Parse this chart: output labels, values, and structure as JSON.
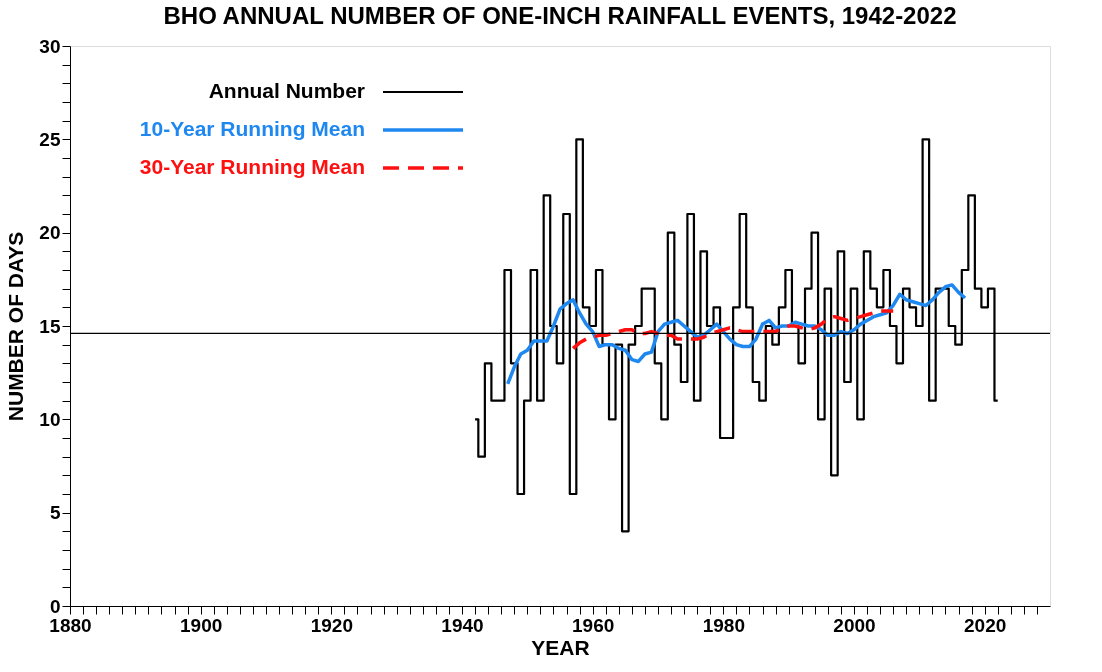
{
  "chart_data": {
    "type": "line",
    "title": "BHO ANNUAL NUMBER OF ONE-INCH RAINFALL EVENTS,   1942-2022",
    "xlabel": "YEAR",
    "ylabel": "NUMBER OF DAYS",
    "xlim": [
      1880,
      2030
    ],
    "ylim": [
      0,
      30
    ],
    "xticks": [
      1880,
      {
        "value": 1882,
        "label": null
      },
      {
        "value": 1884,
        "label": null
      },
      {
        "value": 1886,
        "label": null
      },
      {
        "value": 1888,
        "label": null
      },
      {
        "value": 1890,
        "label": null
      },
      {
        "value": 1892,
        "label": null
      },
      {
        "value": 1894,
        "label": null
      },
      {
        "value": 1896,
        "label": null
      },
      {
        "value": 1898,
        "label": null
      },
      1900,
      {
        "value": 1902,
        "label": null
      },
      {
        "value": 1904,
        "label": null
      },
      {
        "value": 1906,
        "label": null
      },
      {
        "value": 1908,
        "label": null
      },
      {
        "value": 1910,
        "label": null
      },
      {
        "value": 1912,
        "label": null
      },
      {
        "value": 1914,
        "label": null
      },
      {
        "value": 1916,
        "label": null
      },
      {
        "value": 1918,
        "label": null
      },
      1920,
      {
        "value": 1922,
        "label": null
      },
      {
        "value": 1924,
        "label": null
      },
      {
        "value": 1926,
        "label": null
      },
      {
        "value": 1928,
        "label": null
      },
      {
        "value": 1930,
        "label": null
      },
      {
        "value": 1932,
        "label": null
      },
      {
        "value": 1934,
        "label": null
      },
      {
        "value": 1936,
        "label": null
      },
      {
        "value": 1938,
        "label": null
      },
      1940,
      {
        "value": 1942,
        "label": null
      },
      {
        "value": 1944,
        "label": null
      },
      {
        "value": 1946,
        "label": null
      },
      {
        "value": 1948,
        "label": null
      },
      {
        "value": 1950,
        "label": null
      },
      {
        "value": 1952,
        "label": null
      },
      {
        "value": 1954,
        "label": null
      },
      {
        "value": 1956,
        "label": null
      },
      {
        "value": 1958,
        "label": null
      },
      1960,
      {
        "value": 1962,
        "label": null
      },
      {
        "value": 1964,
        "label": null
      },
      {
        "value": 1966,
        "label": null
      },
      {
        "value": 1968,
        "label": null
      },
      {
        "value": 1970,
        "label": null
      },
      {
        "value": 1972,
        "label": null
      },
      {
        "value": 1974,
        "label": null
      },
      {
        "value": 1976,
        "label": null
      },
      {
        "value": 1978,
        "label": null
      },
      1980,
      {
        "value": 1982,
        "label": null
      },
      {
        "value": 1984,
        "label": null
      },
      {
        "value": 1986,
        "label": null
      },
      {
        "value": 1988,
        "label": null
      },
      {
        "value": 1990,
        "label": null
      },
      {
        "value": 1992,
        "label": null
      },
      {
        "value": 1994,
        "label": null
      },
      {
        "value": 1996,
        "label": null
      },
      {
        "value": 1998,
        "label": null
      },
      2000,
      {
        "value": 2002,
        "label": null
      },
      {
        "value": 2004,
        "label": null
      },
      {
        "value": 2006,
        "label": null
      },
      {
        "value": 2008,
        "label": null
      },
      {
        "value": 2010,
        "label": null
      },
      {
        "value": 2012,
        "label": null
      },
      {
        "value": 2014,
        "label": null
      },
      {
        "value": 2016,
        "label": null
      },
      {
        "value": 2018,
        "label": null
      },
      2020,
      {
        "value": 2022,
        "label": null
      },
      {
        "value": 2024,
        "label": null
      },
      {
        "value": 2026,
        "label": null
      },
      {
        "value": 2028,
        "label": null
      }
    ],
    "yticks": [
      0,
      {
        "value": 1,
        "label": null
      },
      {
        "value": 2,
        "label": null
      },
      {
        "value": 3,
        "label": null
      },
      {
        "value": 4,
        "label": null
      },
      5,
      {
        "value": 6,
        "label": null
      },
      {
        "value": 7,
        "label": null
      },
      {
        "value": 8,
        "label": null
      },
      {
        "value": 9,
        "label": null
      },
      10,
      {
        "value": 11,
        "label": null
      },
      {
        "value": 12,
        "label": null
      },
      {
        "value": 13,
        "label": null
      },
      {
        "value": 14,
        "label": null
      },
      15,
      {
        "value": 16,
        "label": null
      },
      {
        "value": 17,
        "label": null
      },
      {
        "value": 18,
        "label": null
      },
      {
        "value": 19,
        "label": null
      },
      20,
      {
        "value": 21,
        "label": null
      },
      {
        "value": 22,
        "label": null
      },
      {
        "value": 23,
        "label": null
      },
      {
        "value": 24,
        "label": null
      },
      25,
      {
        "value": 26,
        "label": null
      },
      {
        "value": 27,
        "label": null
      },
      {
        "value": 28,
        "label": null
      },
      {
        "value": 29,
        "label": null
      },
      30
    ],
    "grid": false,
    "legend": "top left",
    "series": [
      {
        "name": "Annual Number",
        "type": "step",
        "color": "#000000",
        "line_style": "solid",
        "x": [
          1942,
          1943,
          1944,
          1945,
          1946,
          1947,
          1948,
          1949,
          1950,
          1951,
          1952,
          1953,
          1954,
          1955,
          1956,
          1957,
          1958,
          1959,
          1960,
          1961,
          1962,
          1963,
          1964,
          1965,
          1966,
          1967,
          1968,
          1969,
          1970,
          1971,
          1972,
          1973,
          1974,
          1975,
          1976,
          1977,
          1978,
          1979,
          1980,
          1981,
          1982,
          1983,
          1984,
          1985,
          1986,
          1987,
          1988,
          1989,
          1990,
          1991,
          1992,
          1993,
          1994,
          1995,
          1996,
          1997,
          1998,
          1999,
          2000,
          2001,
          2002,
          2003,
          2004,
          2005,
          2006,
          2007,
          2008,
          2009,
          2010,
          2011,
          2012,
          2013,
          2014,
          2015,
          2016,
          2017,
          2018,
          2019,
          2020,
          2021,
          2022
        ],
        "values": [
          10,
          8,
          13,
          11,
          11,
          18,
          13,
          6,
          11,
          18,
          11,
          22,
          15,
          13,
          21,
          6,
          25,
          16,
          15,
          18,
          14,
          10,
          14,
          4,
          14,
          15,
          17,
          17,
          13,
          10,
          20,
          14,
          12,
          21,
          11,
          19,
          15,
          16,
          9,
          9,
          16,
          21,
          16,
          12,
          11,
          15,
          14,
          16,
          18,
          15,
          13,
          17,
          20,
          10,
          17,
          7,
          19,
          12,
          17,
          10,
          19,
          17,
          16,
          18,
          15,
          13,
          17,
          16,
          15,
          25,
          11,
          17,
          17,
          15,
          14,
          18,
          22,
          17,
          16,
          17,
          11
        ]
      },
      {
        "name": "10-Year Running Mean",
        "type": "line",
        "color": "#1e88f0",
        "line_style": "solid",
        "x": [
          1947,
          1948,
          1949,
          1950,
          1951,
          1952,
          1953,
          1954,
          1955,
          1956,
          1957,
          1958,
          1959,
          1960,
          1961,
          1962,
          1963,
          1964,
          1965,
          1966,
          1967,
          1968,
          1969,
          1970,
          1971,
          1972,
          1973,
          1974,
          1975,
          1976,
          1977,
          1978,
          1979,
          1980,
          1981,
          1982,
          1983,
          1984,
          1985,
          1986,
          1987,
          1988,
          1989,
          1990,
          1991,
          1992,
          1993,
          1994,
          1995,
          1996,
          1997,
          1998,
          1999,
          2000,
          2001,
          2002,
          2003,
          2004,
          2005,
          2006,
          2007,
          2008,
          2009,
          2010,
          2011,
          2012,
          2013,
          2014,
          2015,
          2016,
          2017
        ],
        "values": [
          11.9,
          12.8,
          13.5,
          13.7,
          14.2,
          14.2,
          14.2,
          15.0,
          15.9,
          16.2,
          16.4,
          15.7,
          15.1,
          14.7,
          13.9,
          14.0,
          14.0,
          13.8,
          13.7,
          13.2,
          13.1,
          13.5,
          13.6,
          14.7,
          15.1,
          15.2,
          15.3,
          15.0,
          14.7,
          14.4,
          14.5,
          14.8,
          15.1,
          14.7,
          14.3,
          14.0,
          13.9,
          13.9,
          14.3,
          15.1,
          15.3,
          14.9,
          15.0,
          15.0,
          15.2,
          15.1,
          15.0,
          15.0,
          14.8,
          14.5,
          14.5,
          14.7,
          14.6,
          14.8,
          15.1,
          15.3,
          15.5,
          15.6,
          15.7,
          16.1,
          16.7,
          16.4,
          16.3,
          16.2,
          16.1,
          16.4,
          16.8,
          17.1,
          17.2,
          16.8,
          16.5
        ]
      },
      {
        "name": "30-Year Running Mean",
        "type": "line",
        "color": "#ff1010",
        "line_style": "dashed",
        "x": [
          1957,
          1958,
          1959,
          1960,
          1961,
          1962,
          1963,
          1964,
          1965,
          1966,
          1967,
          1968,
          1969,
          1970,
          1971,
          1972,
          1973,
          1974,
          1975,
          1976,
          1977,
          1978,
          1979,
          1980,
          1981,
          1982,
          1983,
          1984,
          1985,
          1986,
          1987,
          1988,
          1989,
          1990,
          1991,
          1992,
          1993,
          1994,
          1995,
          1996,
          1997,
          1998,
          1999,
          2000,
          2001,
          2002,
          2003,
          2004,
          2005,
          2006
        ],
        "values": [
          13.8,
          14.1,
          14.3,
          14.4,
          14.5,
          14.5,
          14.6,
          14.7,
          14.8,
          14.8,
          14.6,
          14.6,
          14.7,
          14.6,
          14.5,
          14.5,
          14.3,
          14.3,
          14.3,
          14.3,
          14.4,
          14.6,
          14.7,
          14.8,
          14.9,
          14.8,
          14.7,
          14.7,
          14.7,
          14.7,
          14.7,
          14.7,
          14.9,
          15.0,
          15.0,
          14.9,
          14.8,
          14.9,
          15.1,
          15.4,
          15.5,
          15.4,
          15.3,
          15.4,
          15.5,
          15.6,
          15.7,
          15.8,
          15.8,
          15.8
        ]
      }
    ],
    "ref_lines": [
      {
        "axis": "y",
        "value": 14.6,
        "color": "#000000"
      }
    ]
  }
}
